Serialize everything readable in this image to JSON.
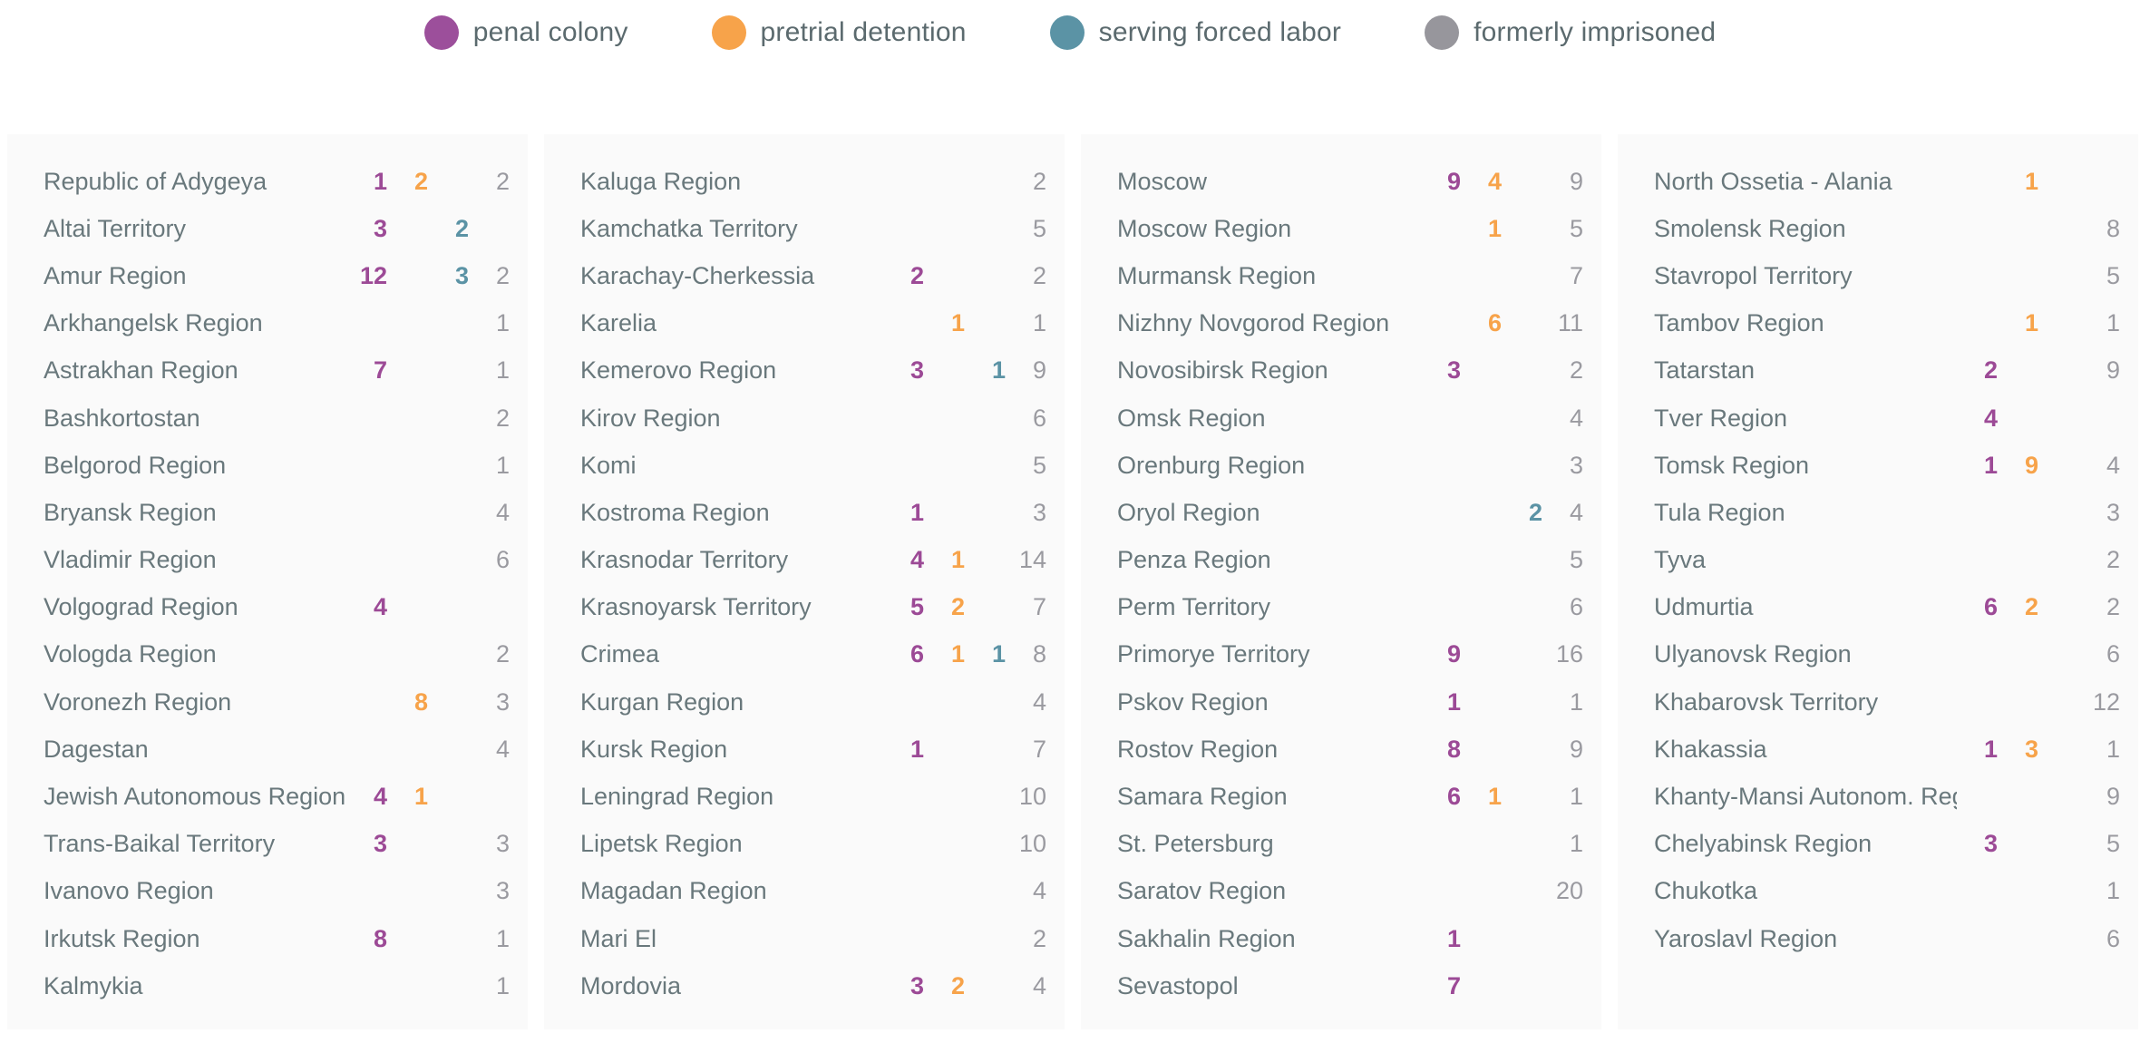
{
  "legend": {
    "items": [
      {
        "key": "penal_colony",
        "label": "penal colony",
        "color": "#9c4f9b"
      },
      {
        "key": "pretrial_detention",
        "label": "pretrial detention",
        "color": "#f7a34a"
      },
      {
        "key": "serving_forced_labor",
        "label": "serving forced labor",
        "color": "#5b93a5"
      },
      {
        "key": "formerly_imprisoned",
        "label": "formerly imprisoned",
        "color": "#97969c"
      }
    ]
  },
  "colors": {
    "penal_colony": "#9c4a96",
    "pretrial_detention": "#f7a34a",
    "serving_forced_labor": "#5b93a5",
    "formerly_imprisoned": "#9a9aa0",
    "region_name": "#69787c",
    "panel_background": "#fafafa"
  },
  "chart_data": {
    "type": "table",
    "title": "",
    "legend": [
      "penal colony",
      "pretrial detention",
      "serving forced labor",
      "formerly imprisoned"
    ],
    "row_format": [
      "region",
      "penal_colony",
      "pretrial_detention",
      "serving_forced_labor",
      "formerly_imprisoned"
    ],
    "groups": [
      [
        [
          "Republic of Adygeya",
          1,
          2,
          null,
          2
        ],
        [
          "Altai Territory",
          3,
          null,
          2,
          null
        ],
        [
          "Amur Region",
          12,
          null,
          3,
          2
        ],
        [
          "Arkhangelsk Region",
          null,
          null,
          null,
          1
        ],
        [
          "Astrakhan Region",
          7,
          null,
          null,
          1
        ],
        [
          "Bashkortostan",
          null,
          null,
          null,
          2
        ],
        [
          "Belgorod Region",
          null,
          null,
          null,
          1
        ],
        [
          "Bryansk Region",
          null,
          null,
          null,
          4
        ],
        [
          "Vladimir Region",
          null,
          null,
          null,
          6
        ],
        [
          "Volgograd Region",
          4,
          null,
          null,
          null
        ],
        [
          "Vologda Region",
          null,
          null,
          null,
          2
        ],
        [
          "Voronezh Region",
          null,
          8,
          null,
          3
        ],
        [
          "Dagestan",
          null,
          null,
          null,
          4
        ],
        [
          "Jewish Autonomous Region",
          4,
          1,
          null,
          null
        ],
        [
          "Trans-Baikal Territory",
          3,
          null,
          null,
          3
        ],
        [
          "Ivanovo Region",
          null,
          null,
          null,
          3
        ],
        [
          "Irkutsk Region",
          8,
          null,
          null,
          1
        ],
        [
          "Kalmykia",
          null,
          null,
          null,
          1
        ]
      ],
      [
        [
          "Kaluga Region",
          null,
          null,
          null,
          2
        ],
        [
          "Kamchatka Territory",
          null,
          null,
          null,
          5
        ],
        [
          "Karachay-Cherkessia",
          2,
          null,
          null,
          2
        ],
        [
          "Karelia",
          null,
          1,
          null,
          1
        ],
        [
          "Kemerovo Region",
          3,
          null,
          1,
          9
        ],
        [
          "Kirov Region",
          null,
          null,
          null,
          6
        ],
        [
          "Komi",
          null,
          null,
          null,
          5
        ],
        [
          "Kostroma Region",
          1,
          null,
          null,
          3
        ],
        [
          "Krasnodar Territory",
          4,
          1,
          null,
          14
        ],
        [
          "Krasnoyarsk Territory",
          5,
          2,
          null,
          7
        ],
        [
          "Crimea",
          6,
          1,
          1,
          8
        ],
        [
          "Kurgan Region",
          null,
          null,
          null,
          4
        ],
        [
          "Kursk Region",
          1,
          null,
          null,
          7
        ],
        [
          "Leningrad Region",
          null,
          null,
          null,
          10
        ],
        [
          "Lipetsk Region",
          null,
          null,
          null,
          10
        ],
        [
          "Magadan Region",
          null,
          null,
          null,
          4
        ],
        [
          "Mari El",
          null,
          null,
          null,
          2
        ],
        [
          "Mordovia",
          3,
          2,
          null,
          4
        ]
      ],
      [
        [
          "Moscow",
          9,
          4,
          null,
          9
        ],
        [
          "Moscow Region",
          null,
          1,
          null,
          5
        ],
        [
          "Murmansk Region",
          null,
          null,
          null,
          7
        ],
        [
          "Nizhny Novgorod Region",
          null,
          6,
          null,
          11
        ],
        [
          "Novosibirsk Region",
          3,
          null,
          null,
          2
        ],
        [
          "Omsk Region",
          null,
          null,
          null,
          4
        ],
        [
          "Orenburg Region",
          null,
          null,
          null,
          3
        ],
        [
          "Oryol Region",
          null,
          null,
          2,
          4
        ],
        [
          "Penza Region",
          null,
          null,
          null,
          5
        ],
        [
          "Perm Territory",
          null,
          null,
          null,
          6
        ],
        [
          "Primorye Territory",
          9,
          null,
          null,
          16
        ],
        [
          "Pskov Region",
          1,
          null,
          null,
          1
        ],
        [
          "Rostov Region",
          8,
          null,
          null,
          9
        ],
        [
          "Samara Region",
          6,
          1,
          null,
          1
        ],
        [
          "St. Petersburg",
          null,
          null,
          null,
          1
        ],
        [
          "Saratov Region",
          null,
          null,
          null,
          20
        ],
        [
          "Sakhalin Region",
          1,
          null,
          null,
          null
        ],
        [
          "Sevastopol",
          7,
          null,
          null,
          null
        ]
      ],
      [
        [
          "North Ossetia - Alania",
          null,
          1,
          null,
          null
        ],
        [
          "Smolensk Region",
          null,
          null,
          null,
          8
        ],
        [
          "Stavropol Territory",
          null,
          null,
          null,
          5
        ],
        [
          "Tambov Region",
          null,
          1,
          null,
          1
        ],
        [
          "Tatarstan",
          2,
          null,
          null,
          9
        ],
        [
          "Tver Region",
          4,
          null,
          null,
          null
        ],
        [
          "Tomsk Region",
          1,
          9,
          null,
          4
        ],
        [
          "Tula Region",
          null,
          null,
          null,
          3
        ],
        [
          "Tyva",
          null,
          null,
          null,
          2
        ],
        [
          "Udmurtia",
          6,
          2,
          null,
          2
        ],
        [
          "Ulyanovsk Region",
          null,
          null,
          null,
          6
        ],
        [
          "Khabarovsk Territory",
          null,
          null,
          null,
          12
        ],
        [
          "Khakassia",
          1,
          3,
          null,
          1
        ],
        [
          "Khanty-Mansi Autonom. Region",
          null,
          null,
          null,
          9
        ],
        [
          "Chelyabinsk Region",
          3,
          null,
          null,
          5
        ],
        [
          "Chukotka",
          null,
          null,
          null,
          1
        ],
        [
          "Yaroslavl Region",
          null,
          null,
          null,
          6
        ]
      ]
    ]
  }
}
